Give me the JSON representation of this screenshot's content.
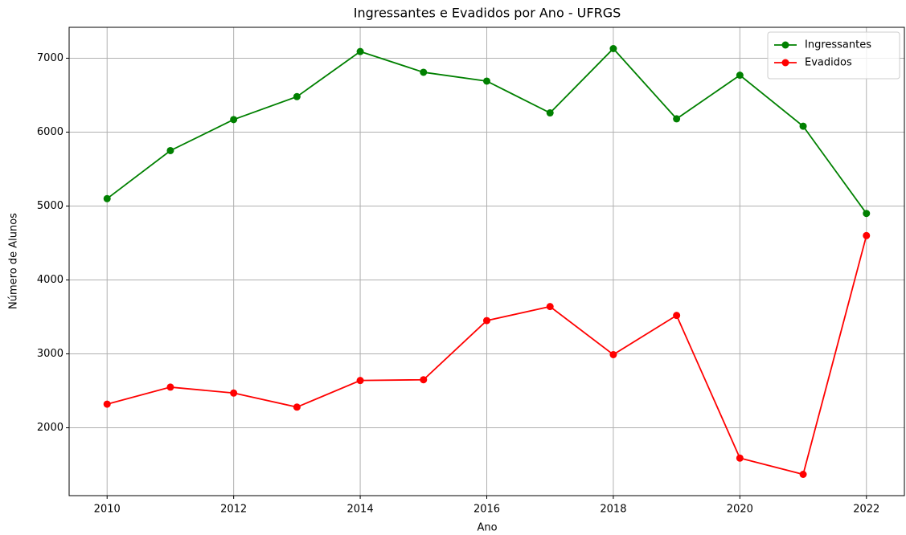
{
  "chart_data": {
    "type": "line",
    "title": "Ingressantes e Evadidos por Ano - UFRGS",
    "x_label": "Ano",
    "y_label": "Número de Alunos",
    "x": [
      2010,
      2011,
      2012,
      2013,
      2014,
      2015,
      2016,
      2017,
      2018,
      2019,
      2020,
      2021,
      2022
    ],
    "series": [
      {
        "name": "Ingressantes",
        "color": "#008000",
        "values": [
          5100,
          5750,
          6170,
          6480,
          7090,
          6810,
          6690,
          6260,
          7130,
          6180,
          6770,
          6080,
          4900
        ]
      },
      {
        "name": "Evadidos",
        "color": "#ff0000",
        "values": [
          2320,
          2550,
          2470,
          2280,
          2640,
          2650,
          3450,
          3640,
          2990,
          3520,
          1590,
          1370,
          4600
        ]
      }
    ],
    "xlim": [
      2009.4,
      2022.6
    ],
    "xticks": [
      2010,
      2012,
      2014,
      2016,
      2018,
      2020,
      2022
    ],
    "ylim": [
      1082,
      7418
    ],
    "yticks": [
      2000,
      3000,
      4000,
      5000,
      6000,
      7000
    ],
    "grid": true,
    "legend": "upper right"
  }
}
